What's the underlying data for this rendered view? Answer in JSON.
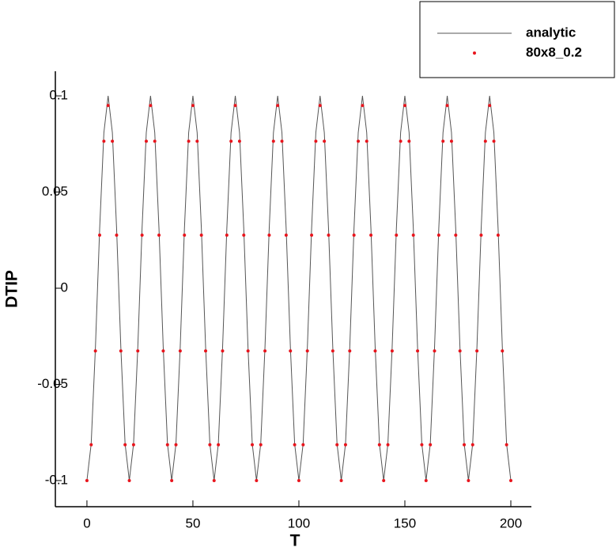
{
  "chart_data": {
    "type": "line",
    "x_label": "T",
    "y_label": "DTIP",
    "x": [
      0,
      2,
      4,
      6,
      8,
      10,
      12,
      14,
      16,
      18,
      20,
      22,
      24,
      26,
      28,
      30,
      32,
      34,
      36,
      38,
      40,
      42,
      44,
      46,
      48,
      50,
      52,
      54,
      56,
      58,
      60,
      62,
      64,
      66,
      68,
      70,
      72,
      74,
      76,
      78,
      80,
      82,
      84,
      86,
      88,
      90,
      92,
      94,
      96,
      98,
      100,
      102,
      104,
      106,
      108,
      110,
      112,
      114,
      116,
      118,
      120,
      122,
      124,
      126,
      128,
      130,
      132,
      134,
      136,
      138,
      140,
      142,
      144,
      146,
      148,
      150,
      152,
      154,
      156,
      158,
      160,
      162,
      164,
      166,
      168,
      170,
      172,
      174,
      176,
      178,
      180,
      182,
      184,
      186,
      188,
      190,
      192,
      194,
      196,
      198,
      200
    ],
    "series": [
      {
        "name": "analytic",
        "color": "#555555",
        "style": "line",
        "values": [
          -0.1,
          -0.0809,
          -0.0309,
          0.0309,
          0.0809,
          0.1,
          0.0809,
          0.0309,
          -0.0309,
          -0.0809,
          -0.1,
          -0.0809,
          -0.0309,
          0.0309,
          0.0809,
          0.1,
          0.0809,
          0.0309,
          -0.0309,
          -0.0809,
          -0.1,
          -0.0809,
          -0.0309,
          0.0309,
          0.0809,
          0.1,
          0.0809,
          0.0309,
          -0.0309,
          -0.0809,
          -0.1,
          -0.0809,
          -0.0309,
          0.0309,
          0.0809,
          0.1,
          0.0809,
          0.0309,
          -0.0309,
          -0.0809,
          -0.1,
          -0.0809,
          -0.0309,
          0.0309,
          0.0809,
          0.1,
          0.0809,
          0.0309,
          -0.0309,
          -0.0809,
          -0.1,
          -0.0809,
          -0.0309,
          0.0309,
          0.0809,
          0.1,
          0.0809,
          0.0309,
          -0.0309,
          -0.0809,
          -0.1,
          -0.0809,
          -0.0309,
          0.0309,
          0.0809,
          0.1,
          0.0809,
          0.0309,
          -0.0309,
          -0.0809,
          -0.1,
          -0.0809,
          -0.0309,
          0.0309,
          0.0809,
          0.1,
          0.0809,
          0.0309,
          -0.0309,
          -0.0809,
          -0.1,
          -0.0809,
          -0.0309,
          0.0309,
          0.0809,
          0.1,
          0.0809,
          0.0309,
          -0.0309,
          -0.0809,
          -0.1,
          -0.0809,
          -0.0309,
          0.0309,
          0.0809,
          0.1,
          0.0809,
          0.0309,
          -0.0309,
          -0.0809,
          -0.1
        ]
      },
      {
        "name": "80x8_0.2",
        "color": "#e8141c",
        "style": "dots",
        "values": [
          -0.1,
          -0.0814,
          -0.0326,
          0.0276,
          0.0764,
          0.095,
          0.0764,
          0.0276,
          -0.0326,
          -0.0814,
          -0.1,
          -0.0814,
          -0.0326,
          0.0276,
          0.0764,
          0.095,
          0.0764,
          0.0276,
          -0.0326,
          -0.0814,
          -0.1,
          -0.0814,
          -0.0326,
          0.0276,
          0.0764,
          0.095,
          0.0764,
          0.0276,
          -0.0326,
          -0.0814,
          -0.1,
          -0.0814,
          -0.0326,
          0.0276,
          0.0764,
          0.095,
          0.0764,
          0.0276,
          -0.0326,
          -0.0814,
          -0.1,
          -0.0814,
          -0.0326,
          0.0276,
          0.0764,
          0.095,
          0.0764,
          0.0276,
          -0.0326,
          -0.0814,
          -0.1,
          -0.0814,
          -0.0326,
          0.0276,
          0.0764,
          0.095,
          0.0764,
          0.0276,
          -0.0326,
          -0.0814,
          -0.1,
          -0.0814,
          -0.0326,
          0.0276,
          0.0764,
          0.095,
          0.0764,
          0.0276,
          -0.0326,
          -0.0814,
          -0.1,
          -0.0814,
          -0.0326,
          0.0276,
          0.0764,
          0.095,
          0.0764,
          0.0276,
          -0.0326,
          -0.0814,
          -0.1,
          -0.0814,
          -0.0326,
          0.0276,
          0.0764,
          0.095,
          0.0764,
          0.0276,
          -0.0326,
          -0.0814,
          -0.1,
          -0.0814,
          -0.0326,
          0.0276,
          0.0764,
          0.095,
          0.0764,
          0.0276,
          -0.0326,
          -0.0814,
          -0.1
        ]
      }
    ],
    "xlim": [
      -14.9,
      209.7
    ],
    "xticks": [
      0,
      50,
      100,
      150,
      200
    ],
    "ylim": [
      -0.1136,
      0.1128
    ],
    "yticks": [
      -0.1,
      -0.05,
      0,
      0.05,
      0.1
    ],
    "legend": "top-right"
  }
}
